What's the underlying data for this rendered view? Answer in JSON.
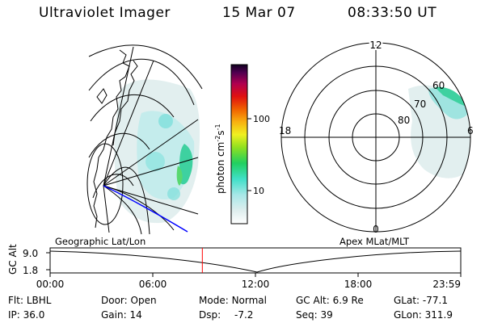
{
  "header": {
    "title": "Ultraviolet Imager",
    "date": "15 Mar 07",
    "time": "08:33:50 UT"
  },
  "colorbar": {
    "label": "photon cm",
    "label_sup1": "-2",
    "label_s": "s",
    "label_sup2": "-1",
    "ticks": [
      "100",
      "10"
    ]
  },
  "geo_panel": {
    "caption": "Geographic Lat/Lon"
  },
  "polar_panel": {
    "caption": "Apex MLat/MLT",
    "mlt_labels": [
      "12",
      "18",
      "6",
      "0"
    ],
    "lat_labels": [
      "60",
      "70",
      "80"
    ]
  },
  "timeline": {
    "axis_label": "GC Alt",
    "y_ticks": [
      "9.0",
      "1.8"
    ],
    "x_ticks": [
      "00:00",
      "06:00",
      "12:00",
      "18:00",
      "23:59"
    ],
    "current_time_fraction": 0.3707
  },
  "status": [
    {
      "label": "Flt:",
      "value": "LBHL"
    },
    {
      "label": "IP:",
      "value": "36.0"
    },
    {
      "label": "Door:",
      "value": "Open"
    },
    {
      "label": "Gain:",
      "value": "14"
    },
    {
      "label": "Mode:",
      "value": "Normal"
    },
    {
      "label": "Dsp:",
      "value": "-7.2"
    },
    {
      "label": "GC Alt:",
      "value": "6.9 Re"
    },
    {
      "label": "Seq:",
      "value": "39"
    },
    {
      "label": "GLat:",
      "value": "-77.1"
    },
    {
      "label": "GLon:",
      "value": "311.9"
    }
  ],
  "colors": {
    "blue_track": "#0000ff",
    "time_marker": "#ff0000"
  }
}
